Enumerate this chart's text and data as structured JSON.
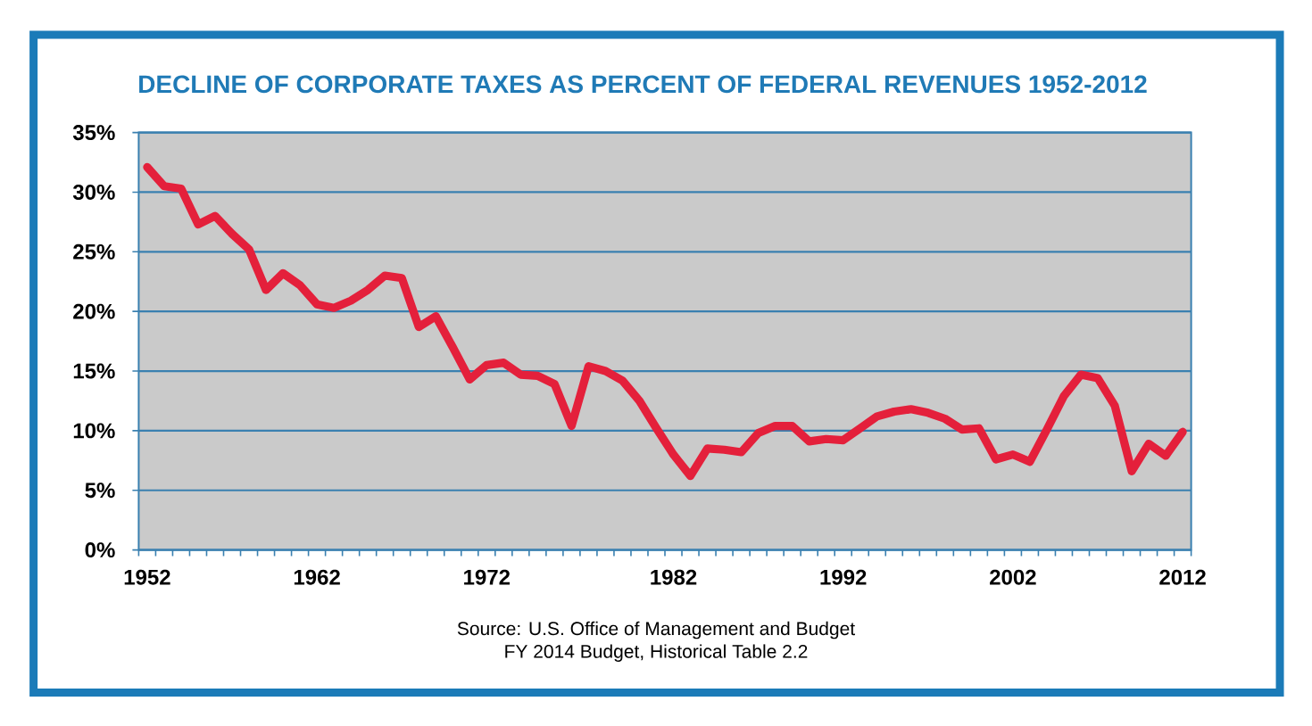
{
  "chart_data": {
    "type": "line",
    "title": "DECLINE OF CORPORATE TAXES AS PERCENT OF FEDERAL REVENUES 1952-2012",
    "categories": [
      "1952",
      null,
      null,
      null,
      null,
      null,
      null,
      null,
      null,
      null,
      "1962",
      null,
      null,
      null,
      null,
      null,
      null,
      null,
      null,
      null,
      "1972",
      null,
      null,
      null,
      null,
      null,
      null,
      null,
      null,
      null,
      null,
      "1982",
      null,
      null,
      null,
      null,
      null,
      null,
      null,
      null,
      null,
      "1992",
      null,
      null,
      null,
      null,
      null,
      null,
      null,
      null,
      null,
      "2002",
      null,
      null,
      null,
      null,
      null,
      null,
      null,
      null,
      null,
      "2012"
    ],
    "series": [
      {
        "color": "#e4203b",
        "values": [
          32.1,
          30.5,
          30.3,
          27.3,
          28.0,
          26.5,
          25.2,
          21.8,
          23.2,
          22.2,
          20.6,
          20.3,
          20.9,
          21.8,
          23.0,
          22.8,
          18.7,
          19.6,
          17.0,
          14.3,
          15.5,
          15.7,
          14.7,
          14.6,
          13.9,
          10.4,
          15.4,
          15.0,
          14.2,
          12.5,
          10.2,
          8.0,
          6.2,
          8.5,
          8.4,
          8.2,
          9.8,
          10.4,
          10.4,
          9.1,
          9.3,
          9.2,
          10.2,
          11.2,
          11.6,
          11.8,
          11.5,
          11.0,
          10.1,
          10.2,
          7.6,
          8.0,
          7.4,
          10.1,
          12.9,
          14.7,
          14.4,
          12.1,
          6.6,
          8.9,
          7.9,
          9.9
        ]
      }
    ],
    "ylim": [
      0,
      35
    ],
    "yticks": [
      {
        "value": 0,
        "label": "0%"
      },
      {
        "value": 5,
        "label": "5%"
      },
      {
        "value": 10,
        "label": "10%"
      },
      {
        "value": 15,
        "label": "15%"
      },
      {
        "value": 20,
        "label": "20%"
      },
      {
        "value": 25,
        "label": "25%"
      },
      {
        "value": 30,
        "label": "30%"
      },
      {
        "value": 35,
        "label": "35%"
      }
    ],
    "grid": "y",
    "line_style": "solid",
    "annotations": [
      "Source: U.S. Office of Management and Budget",
      "FY 2014 Budget, Historical Table 2.2"
    ]
  }
}
